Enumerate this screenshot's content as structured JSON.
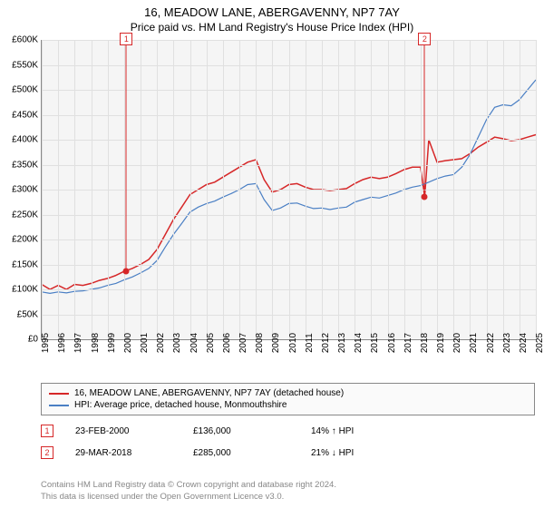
{
  "title": "16, MEADOW LANE, ABERGAVENNY, NP7 7AY",
  "subtitle": "Price paid vs. HM Land Registry's House Price Index (HPI)",
  "chart": {
    "type": "line",
    "background_color": "#f5f5f5",
    "grid_color": "#e0e0e0",
    "axis_color": "#888888",
    "ylim": [
      0,
      600000
    ],
    "ytick_step": 50000,
    "ytick_prefix": "£",
    "ytick_suffix": "K",
    "yticks": [
      "£0",
      "£50K",
      "£100K",
      "£150K",
      "£200K",
      "£250K",
      "£300K",
      "£350K",
      "£400K",
      "£450K",
      "£500K",
      "£550K",
      "£600K"
    ],
    "xlim": [
      1995,
      2025
    ],
    "xticks": [
      1995,
      1996,
      1997,
      1998,
      1999,
      2000,
      2001,
      2002,
      2003,
      2004,
      2005,
      2006,
      2007,
      2008,
      2009,
      2010,
      2011,
      2012,
      2013,
      2014,
      2015,
      2016,
      2017,
      2018,
      2019,
      2020,
      2021,
      2022,
      2023,
      2024,
      2025
    ],
    "series": [
      {
        "name": "property",
        "label": "16, MEADOW LANE, ABERGAVENNY, NP7 7AY (detached house)",
        "color": "#d62728",
        "width": 1.5,
        "data": [
          [
            1995,
            110000
          ],
          [
            1995.5,
            100000
          ],
          [
            1996,
            108000
          ],
          [
            1996.5,
            100000
          ],
          [
            1997,
            110000
          ],
          [
            1997.5,
            108000
          ],
          [
            1998,
            112000
          ],
          [
            1998.5,
            118000
          ],
          [
            1999,
            122000
          ],
          [
            1999.5,
            128000
          ],
          [
            2000,
            136000
          ],
          [
            2000.5,
            142000
          ],
          [
            2001,
            150000
          ],
          [
            2001.5,
            160000
          ],
          [
            2002,
            180000
          ],
          [
            2002.5,
            210000
          ],
          [
            2003,
            240000
          ],
          [
            2003.5,
            265000
          ],
          [
            2004,
            290000
          ],
          [
            2004.5,
            300000
          ],
          [
            2005,
            310000
          ],
          [
            2005.5,
            315000
          ],
          [
            2006,
            325000
          ],
          [
            2006.5,
            335000
          ],
          [
            2007,
            345000
          ],
          [
            2007.5,
            355000
          ],
          [
            2008,
            360000
          ],
          [
            2008.5,
            320000
          ],
          [
            2009,
            295000
          ],
          [
            2009.5,
            300000
          ],
          [
            2010,
            310000
          ],
          [
            2010.5,
            312000
          ],
          [
            2011,
            305000
          ],
          [
            2011.5,
            300000
          ],
          [
            2012,
            300000
          ],
          [
            2012.5,
            298000
          ],
          [
            2013,
            300000
          ],
          [
            2013.5,
            302000
          ],
          [
            2014,
            312000
          ],
          [
            2014.5,
            320000
          ],
          [
            2015,
            325000
          ],
          [
            2015.5,
            322000
          ],
          [
            2016,
            325000
          ],
          [
            2016.5,
            332000
          ],
          [
            2017,
            340000
          ],
          [
            2017.5,
            345000
          ],
          [
            2018,
            345000
          ],
          [
            2018.25,
            285000
          ],
          [
            2018.5,
            400000
          ],
          [
            2019,
            355000
          ],
          [
            2019.5,
            358000
          ],
          [
            2020,
            360000
          ],
          [
            2020.5,
            362000
          ],
          [
            2021,
            372000
          ],
          [
            2021.5,
            385000
          ],
          [
            2022,
            395000
          ],
          [
            2022.5,
            405000
          ],
          [
            2023,
            402000
          ],
          [
            2023.5,
            398000
          ],
          [
            2024,
            400000
          ],
          [
            2024.5,
            405000
          ],
          [
            2025,
            410000
          ]
        ]
      },
      {
        "name": "hpi",
        "label": "HPI: Average price, detached house, Monmouthshire",
        "color": "#4a7fc4",
        "width": 1.2,
        "data": [
          [
            1995,
            95000
          ],
          [
            1995.5,
            92000
          ],
          [
            1996,
            95000
          ],
          [
            1996.5,
            93000
          ],
          [
            1997,
            96000
          ],
          [
            1997.5,
            97000
          ],
          [
            1998,
            100000
          ],
          [
            1998.5,
            103000
          ],
          [
            1999,
            108000
          ],
          [
            1999.5,
            112000
          ],
          [
            2000,
            119000
          ],
          [
            2000.5,
            125000
          ],
          [
            2001,
            133000
          ],
          [
            2001.5,
            142000
          ],
          [
            2002,
            158000
          ],
          [
            2002.5,
            185000
          ],
          [
            2003,
            210000
          ],
          [
            2003.5,
            232000
          ],
          [
            2004,
            255000
          ],
          [
            2004.5,
            265000
          ],
          [
            2005,
            272000
          ],
          [
            2005.5,
            277000
          ],
          [
            2006,
            285000
          ],
          [
            2006.5,
            292000
          ],
          [
            2007,
            300000
          ],
          [
            2007.5,
            310000
          ],
          [
            2008,
            312000
          ],
          [
            2008.5,
            280000
          ],
          [
            2009,
            258000
          ],
          [
            2009.5,
            263000
          ],
          [
            2010,
            272000
          ],
          [
            2010.5,
            273000
          ],
          [
            2011,
            267000
          ],
          [
            2011.5,
            262000
          ],
          [
            2012,
            263000
          ],
          [
            2012.5,
            260000
          ],
          [
            2013,
            263000
          ],
          [
            2013.5,
            265000
          ],
          [
            2014,
            275000
          ],
          [
            2014.5,
            280000
          ],
          [
            2015,
            285000
          ],
          [
            2015.5,
            283000
          ],
          [
            2016,
            288000
          ],
          [
            2016.5,
            293000
          ],
          [
            2017,
            300000
          ],
          [
            2017.5,
            305000
          ],
          [
            2018,
            308000
          ],
          [
            2018.5,
            315000
          ],
          [
            2019,
            322000
          ],
          [
            2019.5,
            327000
          ],
          [
            2020,
            330000
          ],
          [
            2020.5,
            345000
          ],
          [
            2021,
            370000
          ],
          [
            2021.5,
            405000
          ],
          [
            2022,
            440000
          ],
          [
            2022.5,
            465000
          ],
          [
            2023,
            470000
          ],
          [
            2023.5,
            468000
          ],
          [
            2024,
            480000
          ],
          [
            2024.5,
            500000
          ],
          [
            2025,
            520000
          ]
        ]
      }
    ],
    "markers": [
      {
        "n": "1",
        "x": 2000.14,
        "y": 136000,
        "color": "#d62728"
      },
      {
        "n": "2",
        "x": 2018.25,
        "y": 285000,
        "color": "#d62728"
      }
    ]
  },
  "legend": {
    "border_color": "#888888",
    "bg_color": "#fafafa",
    "items": [
      {
        "color": "#d62728",
        "label": "16, MEADOW LANE, ABERGAVENNY, NP7 7AY (detached house)"
      },
      {
        "color": "#4a7fc4",
        "label": "HPI: Average price, detached house, Monmouthshire"
      }
    ]
  },
  "sales": [
    {
      "n": "1",
      "color": "#d62728",
      "date": "23-FEB-2000",
      "price": "£136,000",
      "pct": "14%",
      "arrow": "↑",
      "vs": "HPI"
    },
    {
      "n": "2",
      "color": "#d62728",
      "date": "29-MAR-2018",
      "price": "£285,000",
      "pct": "21%",
      "arrow": "↓",
      "vs": "HPI"
    }
  ],
  "footer": {
    "line1": "Contains HM Land Registry data © Crown copyright and database right 2024.",
    "line2": "This data is licensed under the Open Government Licence v3.0."
  }
}
